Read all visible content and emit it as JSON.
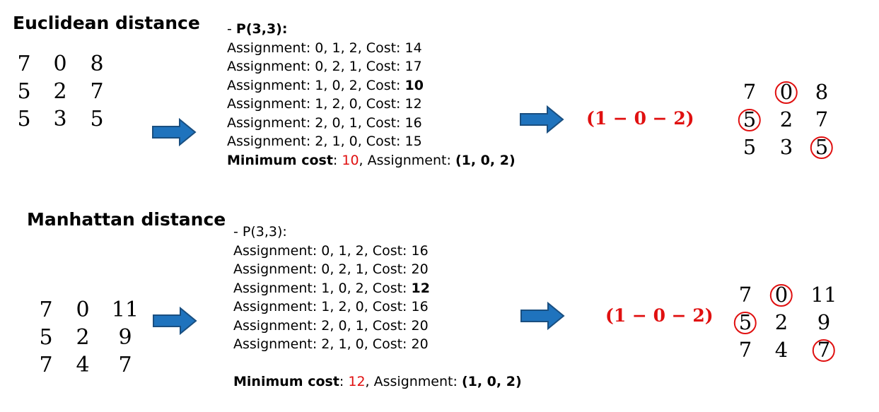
{
  "colors": {
    "highlight": "#e01010",
    "arrow_fill": "#1f73bd",
    "arrow_stroke": "#1a4f80"
  },
  "sections": [
    {
      "title": "Euclidean distance",
      "matrix": [
        [
          "7",
          "0",
          "8"
        ],
        [
          "5",
          "2",
          "7"
        ],
        [
          "5",
          "3",
          "5"
        ]
      ],
      "header_prefix": "- ",
      "header": "P(3,3):",
      "header_bold": true,
      "assignments": [
        {
          "prefix": "Assignment: 0, 1, 2, Cost: ",
          "cost": "14",
          "best": false
        },
        {
          "prefix": "Assignment: 0, 2, 1, Cost: ",
          "cost": "17",
          "best": false
        },
        {
          "prefix": "Assignment: 1, 0, 2, Cost: ",
          "cost": "10",
          "best": true
        },
        {
          "prefix": "Assignment: 1, 2, 0, Cost: ",
          "cost": "12",
          "best": false
        },
        {
          "prefix": "Assignment: 2, 0, 1, Cost: ",
          "cost": "16",
          "best": false
        },
        {
          "prefix": "Assignment: 2, 1, 0, Cost: ",
          "cost": "15",
          "best": false
        }
      ],
      "min_label": "Minimum cost",
      "min_sep": ": ",
      "min_value": "10",
      "assign_label": ", Assignment: ",
      "assign_value": "(1, 0, 2)",
      "sequence": "(1 − 0 − 2)",
      "result_matrix": [
        [
          "7",
          "0",
          "8"
        ],
        [
          "5",
          "2",
          "7"
        ],
        [
          "5",
          "3",
          "5"
        ]
      ],
      "circled": [
        [
          0,
          1
        ],
        [
          1,
          0
        ],
        [
          2,
          2
        ]
      ]
    },
    {
      "title": "Manhattan distance",
      "matrix": [
        [
          "7",
          "0",
          "11"
        ],
        [
          "5",
          "2",
          "9"
        ],
        [
          "7",
          "4",
          "7"
        ]
      ],
      "header_prefix": "- ",
      "header": "P(3,3):",
      "header_bold": false,
      "assignments": [
        {
          "prefix": "Assignment: 0, 1, 2, Cost: ",
          "cost": "16",
          "best": false
        },
        {
          "prefix": "Assignment: 0, 2, 1, Cost: ",
          "cost": "20",
          "best": false
        },
        {
          "prefix": "Assignment: 1, 0, 2, Cost: ",
          "cost": "12",
          "best": true
        },
        {
          "prefix": "Assignment: 1, 2, 0, Cost: ",
          "cost": "16",
          "best": false
        },
        {
          "prefix": "Assignment: 2, 0, 1, Cost: ",
          "cost": "20",
          "best": false
        },
        {
          "prefix": "Assignment: 2, 1, 0, Cost: ",
          "cost": "20",
          "best": false
        }
      ],
      "min_label": "Minimum cost",
      "min_sep": ": ",
      "min_value": "12",
      "assign_label": ", Assignment: ",
      "assign_value": "(1, 0, 2)",
      "sequence": "(1 − 0 − 2)",
      "result_matrix": [
        [
          "7",
          "0",
          "11"
        ],
        [
          "5",
          "2",
          "9"
        ],
        [
          "7",
          "4",
          "7"
        ]
      ],
      "circled": [
        [
          0,
          1
        ],
        [
          1,
          0
        ],
        [
          2,
          2
        ]
      ]
    }
  ]
}
